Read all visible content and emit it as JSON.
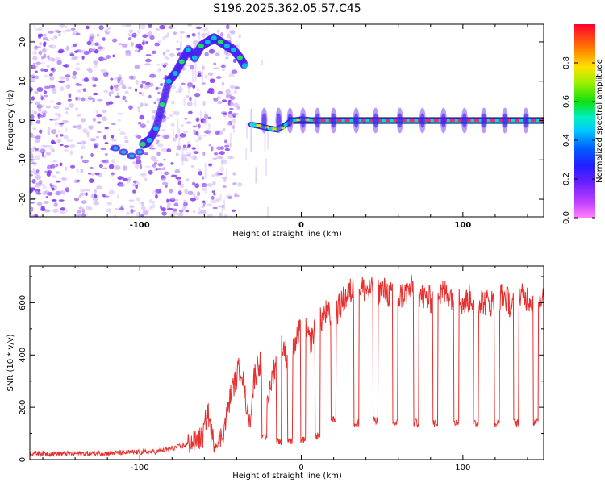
{
  "title": "S196.2025.362.05.57.C45",
  "colors": {
    "snr_line": "#e8302e",
    "tone_ridge": "#e8306a",
    "noise": "#7b2cf0",
    "noise_light": "#c8a8f4",
    "frame": "#000000"
  },
  "colorbar": {
    "label": "Normalized spectral amplitude",
    "ticks": [
      "0.0",
      "0.2",
      "0.4",
      "0.6",
      "0.8"
    ],
    "tick_values": [
      0.0,
      0.2,
      0.4,
      0.6,
      0.8
    ],
    "range": [
      0,
      1
    ],
    "colormap": "rainbow (magenta-purple-blue-cyan-green-yellow-orange-red)"
  },
  "chart_data": [
    {
      "type": "heatmap",
      "xlabel": "Height of straight line (km)",
      "ylabel": "Frequency (Hz)",
      "xlim": [
        -168,
        150
      ],
      "ylim": [
        -24.5,
        24.5
      ],
      "xticks": [
        -100,
        0,
        100
      ],
      "xtick_labels": [
        "-100",
        "0",
        "100"
      ],
      "yticks": [
        -20,
        -10,
        0,
        10,
        20
      ],
      "ytick_labels": [
        "-20",
        "-10",
        "0",
        "10",
        "20"
      ],
      "grid": false,
      "tone_track": {
        "x": [
          -98,
          -94,
          -90,
          -86,
          -82,
          -78,
          -74,
          -70,
          -66,
          -62,
          -58,
          -54,
          -50,
          -46,
          -42,
          -38,
          -35
        ],
        "y": [
          -6,
          -5,
          -2,
          4,
          10,
          12,
          15,
          18,
          16,
          19,
          20,
          21,
          20,
          19,
          18,
          16,
          14
        ]
      },
      "dispersed_track": {
        "x": [
          -115,
          -110,
          -105,
          -100,
          -96
        ],
        "y": [
          -7,
          -8,
          -9,
          -8,
          -6
        ]
      },
      "carrier_track": {
        "x": [
          -31,
          -25,
          -20,
          -15,
          -10,
          -6,
          0,
          10,
          20,
          40,
          60,
          80,
          100,
          120,
          140,
          148
        ],
        "y": [
          -1,
          -1.5,
          -2,
          -2.3,
          -1.2,
          0,
          0.3,
          0,
          0,
          0,
          0,
          0,
          0,
          0,
          0,
          0
        ]
      },
      "carrier_blobs_x": [
        -23,
        -14,
        -7,
        1,
        10,
        20,
        34,
        46,
        61,
        75,
        88,
        101,
        113,
        126,
        139
      ]
    },
    {
      "type": "line",
      "xlabel": "Height of straight line (km)",
      "ylabel": "SNR (10 * v/v)",
      "xlim": [
        -168,
        150
      ],
      "ylim": [
        0,
        740
      ],
      "xticks": [
        -100,
        0,
        100
      ],
      "xtick_labels": [
        "-100",
        "0",
        "100"
      ],
      "yticks": [
        0,
        200,
        400,
        600
      ],
      "ytick_labels": [
        "0",
        "200",
        "400",
        "600"
      ],
      "grid": false,
      "series": [
        {
          "x": [
            -168,
            -150,
            -130,
            -110,
            -90,
            -80,
            -72,
            -66,
            -61,
            -58,
            -55,
            -52,
            -48,
            -44,
            -40,
            -37,
            -35,
            -32,
            -29,
            -26,
            -23,
            -20,
            -17,
            -14,
            -11,
            -8,
            -5,
            -2,
            1,
            5,
            10,
            15,
            20,
            25,
            30,
            35,
            40,
            45,
            50,
            55,
            60,
            65,
            70,
            75,
            80,
            85,
            90,
            95,
            100,
            105,
            110,
            115,
            120,
            125,
            130,
            135,
            140,
            145,
            150
          ],
          "y": [
            25,
            22,
            24,
            26,
            30,
            42,
            55,
            70,
            85,
            190,
            80,
            55,
            110,
            240,
            320,
            360,
            250,
            140,
            320,
            380,
            300,
            240,
            350,
            420,
            430,
            380,
            420,
            470,
            520,
            450,
            510,
            560,
            540,
            600,
            640,
            660,
            650,
            640,
            650,
            630,
            620,
            640,
            660,
            620,
            610,
            630,
            640,
            620,
            600,
            620,
            610,
            600,
            600,
            630,
            590,
            620,
            620,
            600,
            640
          ]
        }
      ],
      "dropouts": [
        {
          "x": -23,
          "y": 80
        },
        {
          "x": -14,
          "y": 70
        },
        {
          "x": -7,
          "y": 70
        },
        {
          "x": 1,
          "y": 75
        },
        {
          "x": 10,
          "y": 90
        },
        {
          "x": 20,
          "y": 150
        },
        {
          "x": 34,
          "y": 140
        },
        {
          "x": 46,
          "y": 150
        },
        {
          "x": 58,
          "y": 140
        },
        {
          "x": 71,
          "y": 140
        },
        {
          "x": 83,
          "y": 140
        },
        {
          "x": 96,
          "y": 145
        },
        {
          "x": 108,
          "y": 140
        },
        {
          "x": 121,
          "y": 140
        },
        {
          "x": 133,
          "y": 140
        },
        {
          "x": 145,
          "y": 140
        }
      ]
    }
  ]
}
